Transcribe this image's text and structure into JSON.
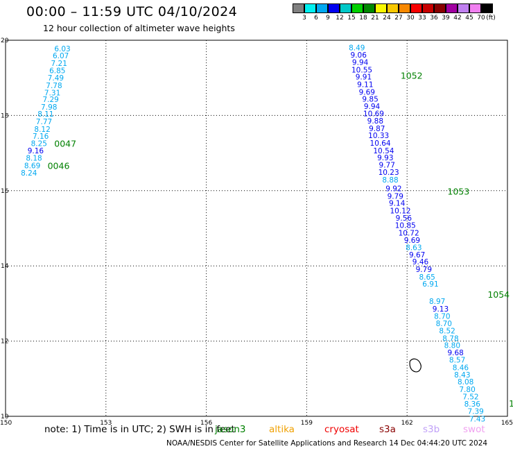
{
  "title": "00:00 – 11:59 UTC 04/10/2024",
  "subtitle": "12 hour collection of altimeter wave heights",
  "legend": {
    "unit": "(ft)",
    "colors": [
      "#808080",
      "#00f0f0",
      "#00a8f0",
      "#0000f0",
      "#00c8c8",
      "#00d000",
      "#008800",
      "#f8f800",
      "#f8c800",
      "#f88800",
      "#f80000",
      "#c80000",
      "#880000",
      "#a000a0",
      "#c080f0",
      "#f080f0",
      "#000000"
    ],
    "labels": [
      "3",
      "6",
      "9",
      "12",
      "15",
      "18",
      "21",
      "24",
      "27",
      "30",
      "33",
      "36",
      "39",
      "42",
      "45",
      "70"
    ]
  },
  "map": {
    "x_ticks": [
      "150",
      "153",
      "156",
      "159",
      "162",
      "165"
    ],
    "y_ticks": [
      "20",
      "18",
      "16",
      "14",
      "12",
      "10"
    ],
    "x_range": [
      150,
      165
    ],
    "y_range": [
      10,
      20
    ]
  },
  "tracks": [
    {
      "labels": [
        {
          "text": "0047",
          "lon": 151.0,
          "lat": 17.26
        },
        {
          "text": "0046",
          "lon": 150.8,
          "lat": 16.67
        }
      ],
      "points": [
        {
          "v": "6.03",
          "lon": 151.7,
          "lat": 19.78
        },
        {
          "v": "6.07",
          "lon": 151.65,
          "lat": 19.59
        },
        {
          "v": "7.21",
          "lon": 151.6,
          "lat": 19.39
        },
        {
          "v": "6.85",
          "lon": 151.55,
          "lat": 19.2
        },
        {
          "v": "7.49",
          "lon": 151.5,
          "lat": 19.0
        },
        {
          "v": "7.78",
          "lon": 151.45,
          "lat": 18.8
        },
        {
          "v": "7.31",
          "lon": 151.4,
          "lat": 18.61
        },
        {
          "v": "7.29",
          "lon": 151.35,
          "lat": 18.43
        },
        {
          "v": "7.98",
          "lon": 151.3,
          "lat": 18.23
        },
        {
          "v": "8.11",
          "lon": 151.2,
          "lat": 18.04
        },
        {
          "v": "7.77",
          "lon": 151.15,
          "lat": 17.84
        },
        {
          "v": "8.12",
          "lon": 151.1,
          "lat": 17.64
        },
        {
          "v": "7.16",
          "lon": 151.05,
          "lat": 17.45
        },
        {
          "v": "8.25",
          "lon": 151.0,
          "lat": 17.26
        },
        {
          "v": "9.16",
          "lon": 150.9,
          "lat": 17.07
        },
        {
          "v": "8.18",
          "lon": 150.85,
          "lat": 16.87
        },
        {
          "v": "8.69",
          "lon": 150.8,
          "lat": 16.67
        },
        {
          "v": "8.24",
          "lon": 150.7,
          "lat": 16.48
        }
      ]
    },
    {
      "labels": [
        {
          "text": "1052",
          "lon": 161.35,
          "lat": 19.07
        },
        {
          "text": "1053",
          "lon": 162.75,
          "lat": 15.99
        },
        {
          "text": "1054",
          "lon": 163.95,
          "lat": 13.25
        }
      ],
      "points": [
        {
          "v": "8.49",
          "lon": 160.5,
          "lat": 19.81
        },
        {
          "v": "9.06",
          "lon": 160.55,
          "lat": 19.61
        },
        {
          "v": "9.94",
          "lon": 160.6,
          "lat": 19.42
        },
        {
          "v": "10.55",
          "lon": 160.65,
          "lat": 19.22
        },
        {
          "v": "9.91",
          "lon": 160.7,
          "lat": 19.03
        },
        {
          "v": "9.11",
          "lon": 160.75,
          "lat": 18.83
        },
        {
          "v": "9.69",
          "lon": 160.8,
          "lat": 18.63
        },
        {
          "v": "9.85",
          "lon": 160.9,
          "lat": 18.44
        },
        {
          "v": "9.94",
          "lon": 160.95,
          "lat": 18.25
        },
        {
          "v": "10.69",
          "lon": 161.0,
          "lat": 18.05
        },
        {
          "v": "9.88",
          "lon": 161.05,
          "lat": 17.86
        },
        {
          "v": "9.87",
          "lon": 161.1,
          "lat": 17.66
        },
        {
          "v": "10.33",
          "lon": 161.15,
          "lat": 17.47
        },
        {
          "v": "10.64",
          "lon": 161.2,
          "lat": 17.27
        },
        {
          "v": "10.54",
          "lon": 161.3,
          "lat": 17.07
        },
        {
          "v": "9.93",
          "lon": 161.35,
          "lat": 16.88
        },
        {
          "v": "9.77",
          "lon": 161.4,
          "lat": 16.69
        },
        {
          "v": "10.23",
          "lon": 161.45,
          "lat": 16.49
        },
        {
          "v": "8.88",
          "lon": 161.5,
          "lat": 16.29
        },
        {
          "v": "9.92",
          "lon": 161.6,
          "lat": 16.06
        },
        {
          "v": "9.79",
          "lon": 161.65,
          "lat": 15.86
        },
        {
          "v": "9.14",
          "lon": 161.7,
          "lat": 15.67
        },
        {
          "v": "10.12",
          "lon": 161.8,
          "lat": 15.47
        },
        {
          "v": "9.56",
          "lon": 161.9,
          "lat": 15.28
        },
        {
          "v": "10.85",
          "lon": 161.95,
          "lat": 15.08
        },
        {
          "v": "10.72",
          "lon": 162.05,
          "lat": 14.88
        },
        {
          "v": "9.69",
          "lon": 162.15,
          "lat": 14.69
        },
        {
          "v": "8.63",
          "lon": 162.2,
          "lat": 14.49
        },
        {
          "v": "9.67",
          "lon": 162.3,
          "lat": 14.3
        },
        {
          "v": "9.46",
          "lon": 162.4,
          "lat": 14.11
        },
        {
          "v": "9.79",
          "lon": 162.5,
          "lat": 13.91
        },
        {
          "v": "8.65",
          "lon": 162.6,
          "lat": 13.71
        },
        {
          "v": "6.91",
          "lon": 162.7,
          "lat": 13.52
        },
        {
          "v": "8.97",
          "lon": 162.9,
          "lat": 13.06
        },
        {
          "v": "9.13",
          "lon": 163.0,
          "lat": 12.86
        },
        {
          "v": "8.70",
          "lon": 163.05,
          "lat": 12.67
        },
        {
          "v": "8.70",
          "lon": 163.1,
          "lat": 12.47
        },
        {
          "v": "8.52",
          "lon": 163.2,
          "lat": 12.28
        },
        {
          "v": "8.78",
          "lon": 163.3,
          "lat": 12.08
        },
        {
          "v": "8.80",
          "lon": 163.35,
          "lat": 11.89
        },
        {
          "v": "9.68",
          "lon": 163.45,
          "lat": 11.7
        },
        {
          "v": "8.57",
          "lon": 163.5,
          "lat": 11.5
        },
        {
          "v": "8.46",
          "lon": 163.6,
          "lat": 11.3
        },
        {
          "v": "8.43",
          "lon": 163.65,
          "lat": 11.11
        },
        {
          "v": "8.08",
          "lon": 163.75,
          "lat": 10.92
        },
        {
          "v": "7.80",
          "lon": 163.8,
          "lat": 10.72
        },
        {
          "v": "7.52",
          "lon": 163.9,
          "lat": 10.53
        },
        {
          "v": "8.36",
          "lon": 163.95,
          "lat": 10.33
        },
        {
          "v": "7.39",
          "lon": 164.05,
          "lat": 10.14
        },
        {
          "v": "7.43",
          "lon": 164.1,
          "lat": 9.94
        }
      ]
    }
  ],
  "edge_label": {
    "text": "1",
    "lon": 165.0,
    "lat": 10.33
  },
  "island": {
    "lon": 162.25,
    "lat": 11.35
  },
  "note": "note:  1) Time is in UTC; 2) SWH is in feet",
  "missions": [
    {
      "name": "jason3",
      "color": "#008000"
    },
    {
      "name": "altika",
      "color": "#f0a000"
    },
    {
      "name": "cryosat",
      "color": "#f00000"
    },
    {
      "name": "s3a",
      "color": "#880000"
    },
    {
      "name": "s3b",
      "color": "#c0a0f8"
    },
    {
      "name": "swot",
      "color": "#f0a0f0"
    }
  ],
  "credit": "NOAA/NESDIS Center for Satellite Applications and Research    14 Dec 04:44:20 UTC 2024"
}
